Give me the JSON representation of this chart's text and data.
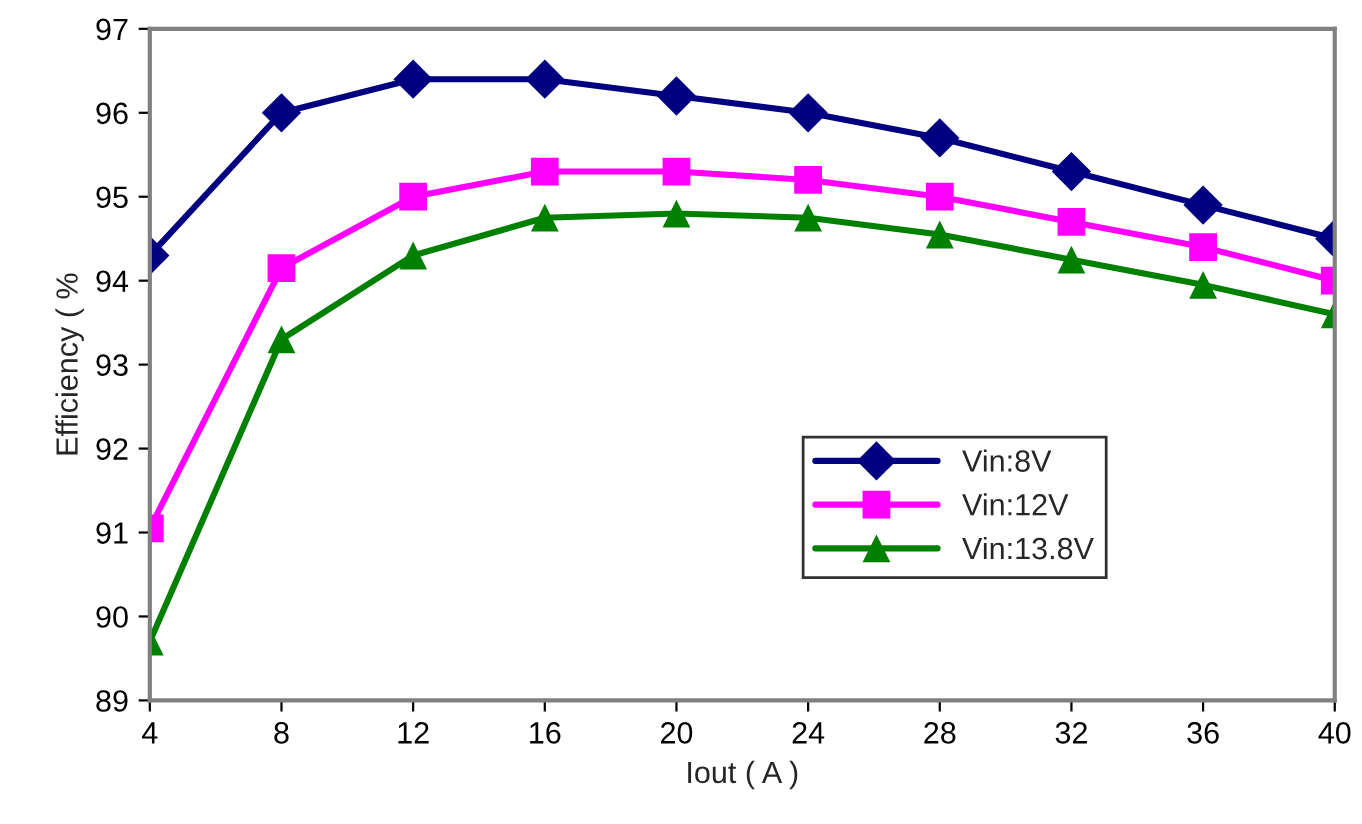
{
  "chart_data": {
    "type": "line",
    "xlabel": "Iout ( A )",
    "ylabel": "Efficiency ( %",
    "x": [
      4,
      8,
      12,
      16,
      20,
      24,
      28,
      32,
      36,
      40
    ],
    "series": [
      {
        "name": "Vin:8V",
        "color": "#000080",
        "marker": "diamond",
        "values": [
          94.3,
          96.0,
          96.4,
          96.4,
          96.2,
          96.0,
          95.7,
          95.3,
          94.9,
          94.5
        ]
      },
      {
        "name": "Vin:12V",
        "color": "#ff00ff",
        "marker": "square",
        "values": [
          91.05,
          94.15,
          95.0,
          95.3,
          95.3,
          95.2,
          95.0,
          94.7,
          94.4,
          94.0
        ]
      },
      {
        "name": "Vin:13.8V",
        "color": "#008000",
        "marker": "triangle",
        "values": [
          89.7,
          93.3,
          94.3,
          94.75,
          94.8,
          94.75,
          94.55,
          94.25,
          93.95,
          93.6
        ]
      }
    ],
    "xlim": [
      4,
      40
    ],
    "xticks": [
      4,
      8,
      12,
      16,
      20,
      24,
      28,
      32,
      36,
      40
    ],
    "ylim": [
      89,
      97
    ],
    "yticks": [
      89,
      90,
      91,
      92,
      93,
      94,
      95,
      96,
      97
    ],
    "grid": false,
    "legend": "bottom right",
    "line_style": "solid"
  }
}
